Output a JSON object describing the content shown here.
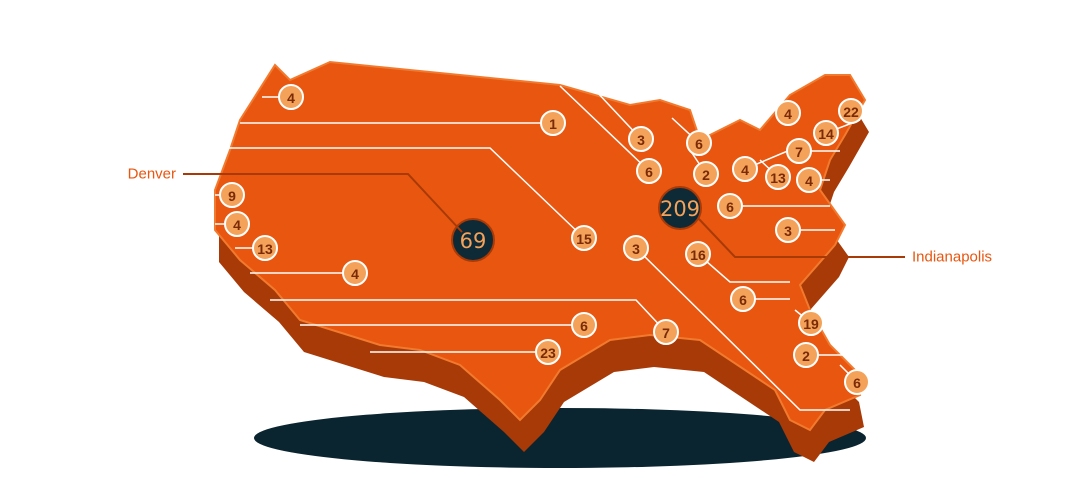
{
  "hubs": [
    {
      "label": "Denver",
      "count": 69
    },
    {
      "label": "Indianapolis",
      "count": 209
    }
  ],
  "markers": [
    4,
    1,
    3,
    6,
    6,
    2,
    4,
    13,
    4,
    22,
    14,
    7,
    4,
    6,
    3,
    9,
    4,
    13,
    4,
    15,
    3,
    16,
    6,
    19,
    2,
    6,
    7,
    6,
    23
  ]
}
